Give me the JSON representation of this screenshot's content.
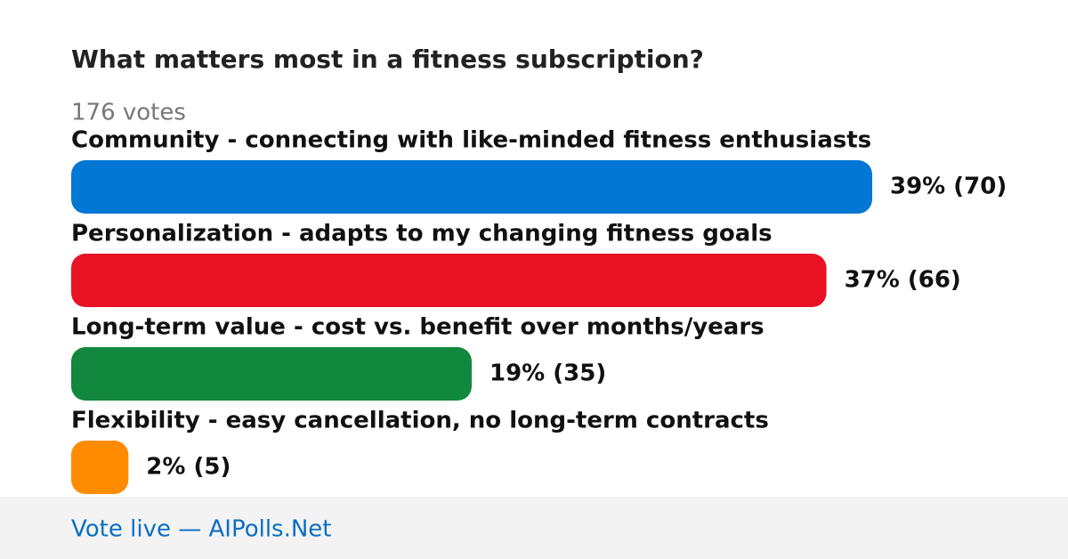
{
  "chart_data": {
    "type": "bar",
    "orientation": "horizontal",
    "title": "What matters most in a fitness subscription?",
    "subtitle": "176 votes",
    "categories": [
      "Community - connecting with like-minded fitness enthusiasts",
      "Personalization - adapts to my changing fitness goals",
      "Long-term value - cost vs. benefit over months/years",
      "Flexibility - easy cancellation, no long-term contracts"
    ],
    "values": [
      70,
      66,
      35,
      5
    ],
    "value_labels": [
      "39% (70)",
      "37% (66)",
      "19% (35)",
      "2% (5)"
    ],
    "colors": [
      "#0377d4",
      "#e81224",
      "#11883e",
      "#ff8c00"
    ],
    "footer": "Vote live — AIPolls.Net"
  }
}
